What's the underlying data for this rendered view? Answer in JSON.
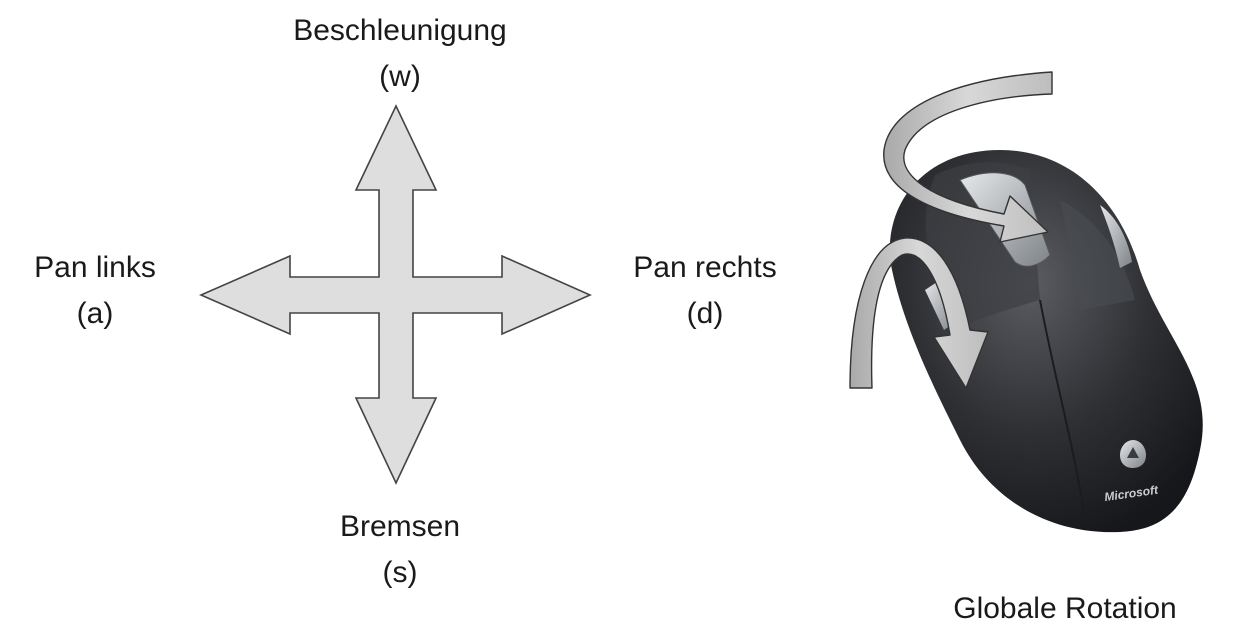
{
  "labels": {
    "up": {
      "line1": "Beschleunigung",
      "line2": "(w)"
    },
    "down": {
      "line1": "Bremsen",
      "line2": "(s)"
    },
    "left": {
      "line1": "Pan links",
      "line2": "(a)"
    },
    "right": {
      "line1": "Pan rechts",
      "line2": "(d)"
    },
    "rotation": "Globale Rotation"
  },
  "mouse": {
    "brand": "Microsoft"
  },
  "icons": {
    "arrows": "four-way-arrow-icon",
    "mouse": "computer-mouse-icon",
    "rotation_arrows": "curved-rotation-arrow-icon"
  },
  "colors": {
    "arrow_fill": "#dedede",
    "arrow_stroke": "#444444",
    "mouse_body": "#2e2f33",
    "mouse_accent": "#9ea3a8",
    "rotation_arrow": "#c8c8c8"
  }
}
